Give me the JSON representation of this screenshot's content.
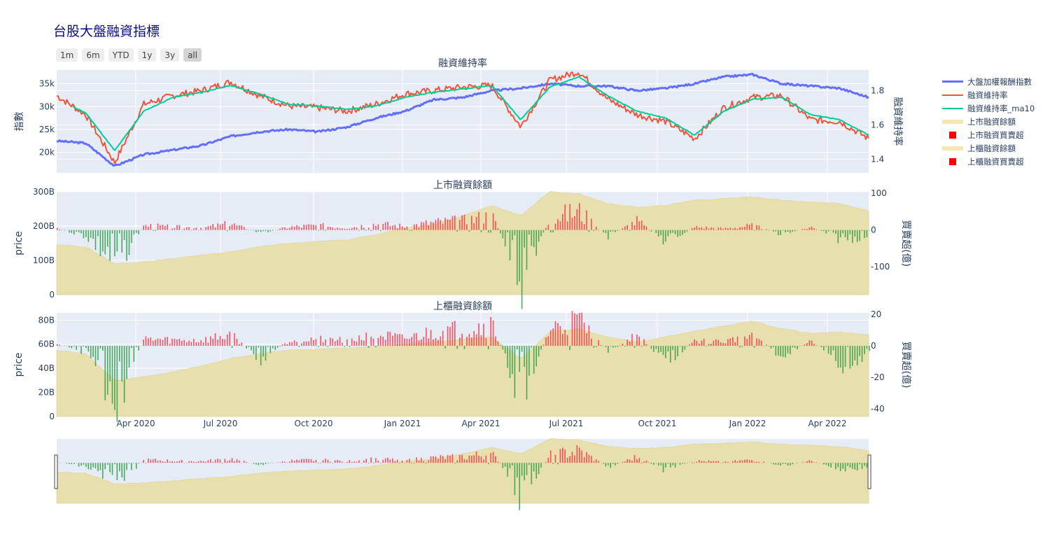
{
  "title": "台股大盤融資指標",
  "range_selector": [
    {
      "label": "1m",
      "active": false
    },
    {
      "label": "6m",
      "active": false
    },
    {
      "label": "YTD",
      "active": false
    },
    {
      "label": "1y",
      "active": false
    },
    {
      "label": "3y",
      "active": false
    },
    {
      "label": "all",
      "active": true
    }
  ],
  "legend": [
    {
      "label": "大盤加權報酬指數",
      "type": "line",
      "color": "#636efa"
    },
    {
      "label": "融資維持率",
      "type": "line",
      "color": "#ef553b"
    },
    {
      "label": "融資維持率_ma10",
      "type": "line",
      "color": "#00cc96"
    },
    {
      "label": "上市融資餘額",
      "type": "area",
      "color": "#f5e6b3"
    },
    {
      "label": "上市融資買賣超",
      "type": "square",
      "color": "#ff0000"
    },
    {
      "label": "上櫃融資餘額",
      "type": "area",
      "color": "#f5e6b3"
    },
    {
      "label": "上櫃融資買賣超",
      "type": "square",
      "color": "#ff0000"
    }
  ],
  "colors": {
    "plot_bg": "#e5ecf6",
    "grid": "#ffffff",
    "area": "#e8dfae",
    "buy": "#ff3344",
    "sell": "#2e9e44",
    "index": "#636efa",
    "ratio": "#ef553b",
    "ma": "#00cc96"
  },
  "x_ticks": [
    "Apr 2020",
    "Jul 2020",
    "Oct 2020",
    "Jan 2021",
    "Apr 2021",
    "Jul 2021",
    "Oct 2021",
    "Jan 2022",
    "Apr 2022"
  ],
  "chart_data": [
    {
      "type": "line",
      "title": "融資維持率",
      "ylabel": "指數",
      "y2label": "融資維持率",
      "yticks": [
        "20k",
        "25k",
        "30k",
        "35k"
      ],
      "y2ticks": [
        "1.4",
        "1.6",
        "1.8"
      ],
      "ylim": [
        15500,
        38000
      ],
      "y2lim": [
        1.32,
        1.92
      ],
      "x": [
        "2020-01",
        "2020-02",
        "2020-03",
        "2020-04",
        "2020-05",
        "2020-06",
        "2020-07",
        "2020-08",
        "2020-09",
        "2020-10",
        "2020-11",
        "2020-12",
        "2021-01",
        "2021-02",
        "2021-03",
        "2021-04",
        "2021-05",
        "2021-06",
        "2021-07",
        "2021-08",
        "2021-09",
        "2021-10",
        "2021-11",
        "2021-12",
        "2022-01",
        "2022-02",
        "2022-03",
        "2022-04",
        "2022-05"
      ],
      "series": [
        {
          "name": "大盤加權報酬指數",
          "axis": "y",
          "values": [
            22500,
            22000,
            17000,
            19500,
            20500,
            21500,
            23500,
            24500,
            25000,
            24500,
            25500,
            27500,
            29000,
            31500,
            32000,
            33500,
            34000,
            35000,
            34500,
            34500,
            33500,
            34000,
            35000,
            36500,
            37000,
            35000,
            34500,
            34000,
            32000
          ]
        },
        {
          "name": "融資維持率",
          "axis": "y2",
          "values": [
            1.77,
            1.66,
            1.38,
            1.72,
            1.77,
            1.8,
            1.85,
            1.77,
            1.71,
            1.7,
            1.68,
            1.72,
            1.78,
            1.8,
            1.82,
            1.83,
            1.59,
            1.86,
            1.91,
            1.75,
            1.66,
            1.62,
            1.52,
            1.7,
            1.76,
            1.77,
            1.63,
            1.62,
            1.52
          ]
        },
        {
          "name": "融資維持率_ma10",
          "axis": "y2",
          "values": [
            1.75,
            1.67,
            1.45,
            1.68,
            1.76,
            1.79,
            1.83,
            1.78,
            1.72,
            1.71,
            1.69,
            1.71,
            1.76,
            1.79,
            1.81,
            1.83,
            1.63,
            1.82,
            1.88,
            1.77,
            1.68,
            1.64,
            1.54,
            1.68,
            1.75,
            1.76,
            1.66,
            1.63,
            1.54
          ]
        }
      ]
    },
    {
      "type": "bar+area",
      "title": "上市融資餘額",
      "ylabel": "price",
      "y2label": "買賣超(億)",
      "yticks": [
        "0",
        "100B",
        "200B",
        "300B"
      ],
      "y2ticks": [
        "-100",
        "0",
        "100"
      ],
      "ylim": [
        0,
        300
      ],
      "y2lim": [
        -176,
        104
      ],
      "area_values": [
        145,
        140,
        90,
        95,
        105,
        115,
        125,
        140,
        150,
        155,
        160,
        175,
        195,
        205,
        230,
        260,
        230,
        300,
        295,
        265,
        255,
        260,
        275,
        280,
        285,
        275,
        270,
        265,
        245
      ],
      "bar_values": [
        5,
        -20,
        -110,
        15,
        10,
        8,
        20,
        -10,
        10,
        15,
        8,
        20,
        12,
        25,
        30,
        45,
        -160,
        40,
        60,
        -20,
        30,
        -40,
        10,
        5,
        15,
        -15,
        10,
        -30,
        -20
      ]
    },
    {
      "type": "bar+area",
      "title": "上櫃融資餘額",
      "ylabel": "price",
      "y2label": "買賣超(億)",
      "yticks": [
        "0",
        "20B",
        "40B",
        "60B",
        "80B"
      ],
      "y2ticks": [
        "-40",
        "-20",
        "0",
        "20"
      ],
      "ylim": [
        0,
        86
      ],
      "y2lim": [
        -45,
        21
      ],
      "area_values": [
        55,
        52,
        30,
        33,
        37,
        42,
        48,
        52,
        55,
        56,
        57,
        58,
        60,
        62,
        64,
        66,
        48,
        70,
        73,
        66,
        62,
        66,
        71,
        75,
        79,
        73,
        69,
        70,
        68
      ],
      "bar_values": [
        2,
        -5,
        -40,
        5,
        4,
        4,
        8,
        -10,
        4,
        5,
        4,
        8,
        5,
        10,
        12,
        15,
        -35,
        12,
        18,
        -5,
        8,
        -12,
        4,
        3,
        8,
        -8,
        4,
        -15,
        -5
      ]
    }
  ]
}
